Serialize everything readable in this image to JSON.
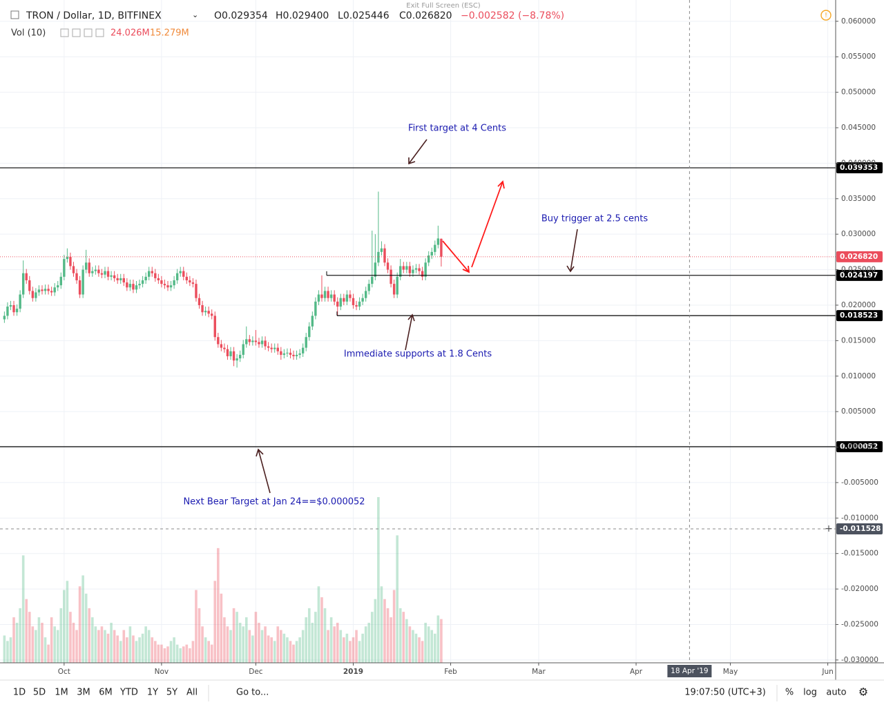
{
  "chart_data": {
    "type": "candlestick",
    "symbol": "TRON / Dollar, 1D, BITFINEX",
    "header": [
      {
        "prefix": "O",
        "value": "0.029354"
      },
      {
        "prefix": "H",
        "value": "0.029400"
      },
      {
        "prefix": "L",
        "value": "0.025446"
      },
      {
        "prefix": "C",
        "value": "0.026820"
      },
      {
        "prefix": "",
        "value": "−0.002582 (−8.78%)"
      }
    ],
    "volume_title": "Vol (10)",
    "volume_value": "24.026M",
    "volume_ma": "15.279M",
    "exit_text": "Exit Full Screen (ESC)",
    "ylim": [
      -0.0304,
      0.063
    ],
    "yticks": [
      {
        "value": 0.06,
        "label": "0.060000"
      },
      {
        "value": 0.055,
        "label": "0.055000"
      },
      {
        "value": 0.05,
        "label": "0.050000"
      },
      {
        "value": 0.045,
        "label": "0.045000"
      },
      {
        "value": 0.04,
        "label": "0.040000"
      },
      {
        "value": 0.035,
        "label": "0.035000"
      },
      {
        "value": 0.03,
        "label": "0.030000"
      },
      {
        "value": 0.025,
        "label": "0.025000"
      },
      {
        "value": 0.02,
        "label": "0.020000"
      },
      {
        "value": 0.015,
        "label": "0.015000"
      },
      {
        "value": 0.01,
        "label": "0.010000"
      },
      {
        "value": 0.005,
        "label": "0.005000"
      },
      {
        "value": 0,
        "label": "0.000000"
      },
      {
        "value": -0.005,
        "label": "-0.005000"
      },
      {
        "value": -0.01,
        "label": "-0.010000"
      },
      {
        "value": -0.015,
        "label": "-0.015000"
      },
      {
        "value": -0.02,
        "label": "-0.020000"
      },
      {
        "value": -0.025,
        "label": "-0.025000"
      },
      {
        "value": -0.03,
        "label": "-0.030000"
      }
    ],
    "xlim": [
      -1.4,
      264.5
    ],
    "xticks": [
      {
        "value": 19,
        "label": "Oct"
      },
      {
        "value": 50,
        "label": "Nov"
      },
      {
        "value": 80,
        "label": "Dec"
      },
      {
        "value": 111,
        "label": "2019"
      },
      {
        "value": 142,
        "label": "Feb"
      },
      {
        "value": 170,
        "label": "Mar"
      },
      {
        "value": 201,
        "label": "Apr"
      },
      {
        "value": 231,
        "label": "May"
      },
      {
        "value": 262,
        "label": "Jun"
      }
    ],
    "up_color": "#53b987",
    "down_color": "#eb4d5c",
    "ohlc": [
      [
        0.018,
        0.0191,
        0.0175,
        0.0185
      ],
      [
        0.0185,
        0.0204,
        0.018,
        0.0198
      ],
      [
        0.0198,
        0.0206,
        0.0193,
        0.02
      ],
      [
        0.02,
        0.0206,
        0.0185,
        0.019
      ],
      [
        0.019,
        0.0201,
        0.0185,
        0.0195
      ],
      [
        0.0195,
        0.0221,
        0.019,
        0.0215
      ],
      [
        0.0215,
        0.0263,
        0.021,
        0.0245
      ],
      [
        0.0245,
        0.0251,
        0.023,
        0.0235
      ],
      [
        0.0235,
        0.0241,
        0.0215,
        0.022
      ],
      [
        0.022,
        0.0226,
        0.0205,
        0.021
      ],
      [
        0.021,
        0.0224,
        0.0205,
        0.0218
      ],
      [
        0.0218,
        0.0228,
        0.0213,
        0.0222
      ],
      [
        0.0222,
        0.0228,
        0.0215,
        0.022
      ],
      [
        0.022,
        0.0229,
        0.0215,
        0.0223
      ],
      [
        0.0223,
        0.0229,
        0.0215,
        0.022
      ],
      [
        0.022,
        0.0226,
        0.0213,
        0.0218
      ],
      [
        0.0218,
        0.0231,
        0.0213,
        0.0225
      ],
      [
        0.0225,
        0.0234,
        0.022,
        0.0228
      ],
      [
        0.0228,
        0.0246,
        0.0223,
        0.024
      ],
      [
        0.024,
        0.0271,
        0.0235,
        0.0265
      ],
      [
        0.0265,
        0.028,
        0.026,
        0.0268
      ],
      [
        0.0268,
        0.0274,
        0.025,
        0.0255
      ],
      [
        0.0255,
        0.0261,
        0.024,
        0.0245
      ],
      [
        0.0245,
        0.0251,
        0.023,
        0.0235
      ],
      [
        0.0235,
        0.0241,
        0.021,
        0.0215
      ],
      [
        0.0215,
        0.0256,
        0.021,
        0.025
      ],
      [
        0.025,
        0.0278,
        0.0245,
        0.026
      ],
      [
        0.026,
        0.0266,
        0.024,
        0.0245
      ],
      [
        0.0245,
        0.0254,
        0.024,
        0.0248
      ],
      [
        0.0248,
        0.0256,
        0.0243,
        0.025
      ],
      [
        0.025,
        0.0256,
        0.024,
        0.0245
      ],
      [
        0.0245,
        0.0251,
        0.0238,
        0.0243
      ],
      [
        0.0243,
        0.0254,
        0.0238,
        0.0248
      ],
      [
        0.0248,
        0.0254,
        0.0235,
        0.024
      ],
      [
        0.024,
        0.0248,
        0.0235,
        0.0242
      ],
      [
        0.0242,
        0.0248,
        0.0233,
        0.0238
      ],
      [
        0.0238,
        0.0244,
        0.023,
        0.0235
      ],
      [
        0.0235,
        0.0244,
        0.023,
        0.0238
      ],
      [
        0.0238,
        0.0244,
        0.0227,
        0.0232
      ],
      [
        0.0232,
        0.0238,
        0.022,
        0.0225
      ],
      [
        0.0225,
        0.0236,
        0.022,
        0.023
      ],
      [
        0.023,
        0.0236,
        0.0217,
        0.0222
      ],
      [
        0.0222,
        0.0234,
        0.0217,
        0.0228
      ],
      [
        0.0228,
        0.0236,
        0.0223,
        0.023
      ],
      [
        0.023,
        0.0241,
        0.0225,
        0.0235
      ],
      [
        0.0235,
        0.0246,
        0.023,
        0.024
      ],
      [
        0.024,
        0.0254,
        0.0235,
        0.0248
      ],
      [
        0.0248,
        0.0254,
        0.024,
        0.0245
      ],
      [
        0.0245,
        0.0251,
        0.0233,
        0.0238
      ],
      [
        0.0238,
        0.0244,
        0.023,
        0.0235
      ],
      [
        0.0235,
        0.0241,
        0.0225,
        0.023
      ],
      [
        0.023,
        0.0236,
        0.0223,
        0.0228
      ],
      [
        0.0228,
        0.0234,
        0.022,
        0.0225
      ],
      [
        0.0225,
        0.0234,
        0.022,
        0.0228
      ],
      [
        0.0228,
        0.0241,
        0.0223,
        0.0235
      ],
      [
        0.0235,
        0.0251,
        0.023,
        0.0245
      ],
      [
        0.0245,
        0.0254,
        0.024,
        0.0248
      ],
      [
        0.0248,
        0.0254,
        0.0235,
        0.024
      ],
      [
        0.024,
        0.0246,
        0.023,
        0.0235
      ],
      [
        0.0235,
        0.0241,
        0.0227,
        0.0232
      ],
      [
        0.0232,
        0.0238,
        0.0225,
        0.023
      ],
      [
        0.023,
        0.0236,
        0.0205,
        0.021
      ],
      [
        0.021,
        0.0216,
        0.0195,
        0.02
      ],
      [
        0.02,
        0.0206,
        0.0185,
        0.019
      ],
      [
        0.019,
        0.0198,
        0.0185,
        0.0192
      ],
      [
        0.0192,
        0.0198,
        0.0183,
        0.0188
      ],
      [
        0.0188,
        0.0194,
        0.018,
        0.0185
      ],
      [
        0.0185,
        0.0191,
        0.015,
        0.0155
      ],
      [
        0.0155,
        0.0161,
        0.014,
        0.0145
      ],
      [
        0.0145,
        0.0151,
        0.0135,
        0.014
      ],
      [
        0.014,
        0.0146,
        0.0133,
        0.0138
      ],
      [
        0.0138,
        0.0144,
        0.0123,
        0.0128
      ],
      [
        0.0128,
        0.0141,
        0.0123,
        0.0135
      ],
      [
        0.0135,
        0.0141,
        0.0114,
        0.0122
      ],
      [
        0.0122,
        0.0131,
        0.0112,
        0.0125
      ],
      [
        0.0125,
        0.0136,
        0.012,
        0.013
      ],
      [
        0.013,
        0.0151,
        0.0125,
        0.0145
      ],
      [
        0.0145,
        0.017,
        0.014,
        0.0152
      ],
      [
        0.0152,
        0.0158,
        0.0143,
        0.0148
      ],
      [
        0.0148,
        0.0156,
        0.0143,
        0.015
      ],
      [
        0.015,
        0.0165,
        0.0143,
        0.0148
      ],
      [
        0.0148,
        0.0154,
        0.014,
        0.0145
      ],
      [
        0.0145,
        0.0156,
        0.014,
        0.015
      ],
      [
        0.015,
        0.0156,
        0.0137,
        0.0142
      ],
      [
        0.0142,
        0.0148,
        0.0135,
        0.014
      ],
      [
        0.014,
        0.0146,
        0.0133,
        0.0138
      ],
      [
        0.0138,
        0.0146,
        0.0133,
        0.014
      ],
      [
        0.014,
        0.0146,
        0.013,
        0.0135
      ],
      [
        0.0135,
        0.0141,
        0.0123,
        0.013
      ],
      [
        0.013,
        0.0138,
        0.0125,
        0.0132
      ],
      [
        0.0132,
        0.0139,
        0.0127,
        0.0133
      ],
      [
        0.0133,
        0.0139,
        0.0125,
        0.013
      ],
      [
        0.013,
        0.0136,
        0.0123,
        0.0128
      ],
      [
        0.0128,
        0.0136,
        0.0123,
        0.013
      ],
      [
        0.013,
        0.0138,
        0.0125,
        0.0132
      ],
      [
        0.0132,
        0.0146,
        0.0127,
        0.014
      ],
      [
        0.014,
        0.0161,
        0.0135,
        0.0155
      ],
      [
        0.0155,
        0.0176,
        0.015,
        0.017
      ],
      [
        0.017,
        0.0191,
        0.0165,
        0.0185
      ],
      [
        0.0185,
        0.0211,
        0.018,
        0.0205
      ],
      [
        0.0205,
        0.0221,
        0.02,
        0.0215
      ],
      [
        0.0215,
        0.0242,
        0.0205,
        0.021
      ],
      [
        0.021,
        0.0226,
        0.0205,
        0.022
      ],
      [
        0.022,
        0.0226,
        0.0205,
        0.021
      ],
      [
        0.021,
        0.0221,
        0.0205,
        0.0215
      ],
      [
        0.0215,
        0.0221,
        0.02,
        0.0205
      ],
      [
        0.0205,
        0.0211,
        0.0185,
        0.0198
      ],
      [
        0.0198,
        0.0216,
        0.0193,
        0.021
      ],
      [
        0.021,
        0.0216,
        0.02,
        0.0205
      ],
      [
        0.0205,
        0.0221,
        0.02,
        0.0215
      ],
      [
        0.0215,
        0.0221,
        0.0205,
        0.021
      ],
      [
        0.021,
        0.0216,
        0.0195,
        0.02
      ],
      [
        0.02,
        0.0206,
        0.0193,
        0.0198
      ],
      [
        0.0198,
        0.0211,
        0.0193,
        0.0205
      ],
      [
        0.0205,
        0.0216,
        0.02,
        0.021
      ],
      [
        0.021,
        0.0226,
        0.0205,
        0.022
      ],
      [
        0.022,
        0.0236,
        0.0215,
        0.023
      ],
      [
        0.023,
        0.0305,
        0.0225,
        0.024
      ],
      [
        0.024,
        0.03,
        0.0235,
        0.026
      ],
      [
        0.026,
        0.036,
        0.0255,
        0.0275
      ],
      [
        0.0275,
        0.029,
        0.027,
        0.028
      ],
      [
        0.028,
        0.0286,
        0.0255,
        0.026
      ],
      [
        0.026,
        0.0266,
        0.0245,
        0.025
      ],
      [
        0.025,
        0.0256,
        0.0225,
        0.023
      ],
      [
        0.023,
        0.0236,
        0.021,
        0.0215
      ],
      [
        0.0215,
        0.0246,
        0.021,
        0.024
      ],
      [
        0.024,
        0.0265,
        0.0235,
        0.0255
      ],
      [
        0.0255,
        0.0261,
        0.0245,
        0.025
      ],
      [
        0.025,
        0.0261,
        0.0245,
        0.0255
      ],
      [
        0.0255,
        0.0261,
        0.024,
        0.0245
      ],
      [
        0.0245,
        0.0256,
        0.024,
        0.025
      ],
      [
        0.025,
        0.0258,
        0.0245,
        0.0252
      ],
      [
        0.0252,
        0.0258,
        0.0243,
        0.0248
      ],
      [
        0.0248,
        0.0254,
        0.0235,
        0.024
      ],
      [
        0.024,
        0.0266,
        0.0235,
        0.026
      ],
      [
        0.026,
        0.0276,
        0.0255,
        0.027
      ],
      [
        0.027,
        0.0281,
        0.0265,
        0.0275
      ],
      [
        0.0275,
        0.0291,
        0.027,
        0.0285
      ],
      [
        0.0285,
        0.0312,
        0.028,
        0.0294
      ],
      [
        0.029354,
        0.0294,
        0.025446,
        0.02682
      ]
    ],
    "volume": [
      15,
      12,
      14,
      25,
      22,
      30,
      59,
      35,
      28,
      20,
      18,
      25,
      22,
      14,
      10,
      25,
      20,
      18,
      30,
      40,
      45,
      28,
      22,
      18,
      42,
      48,
      38,
      30,
      25,
      20,
      18,
      20,
      18,
      16,
      22,
      18,
      15,
      12,
      18,
      14,
      20,
      15,
      12,
      14,
      16,
      20,
      18,
      14,
      12,
      10,
      10,
      8,
      9,
      12,
      14,
      10,
      8,
      9,
      10,
      8,
      12,
      40,
      30,
      20,
      14,
      12,
      10,
      45,
      63,
      38,
      25,
      20,
      18,
      30,
      28,
      22,
      20,
      25,
      18,
      15,
      28,
      22,
      18,
      20,
      15,
      14,
      12,
      20,
      18,
      16,
      14,
      12,
      10,
      12,
      14,
      18,
      25,
      30,
      22,
      28,
      42,
      36,
      30,
      18,
      25,
      20,
      22,
      18,
      14,
      16,
      12,
      14,
      18,
      12,
      16,
      20,
      22,
      28,
      35,
      91,
      42,
      35,
      30,
      25,
      40,
      70,
      30,
      28,
      24,
      20,
      18,
      16,
      14,
      12,
      22,
      20,
      18,
      16,
      26,
      24.026
    ],
    "last_price": {
      "value": 0.02682,
      "label": "0.026820"
    },
    "levels": [
      {
        "value": 0.039353,
        "label": "0.039353"
      },
      {
        "value": 0.024197,
        "label": "0.024197"
      },
      {
        "value": 0.018523,
        "label": "0.018523"
      },
      {
        "value": 5.2e-05,
        "label": "0.000052"
      }
    ],
    "crosshair": {
      "price": {
        "value": -0.011528,
        "label": "-0.011528"
      },
      "date": {
        "value": 218,
        "label": "18 Apr '19"
      }
    },
    "annotations": [
      "First target at 4 Cents",
      "Buy trigger at 2.5 cents",
      "Immediate supports at 1.8 Cents",
      "Next Bear Target at Jan 24==$0.000052"
    ],
    "toolbar": {
      "ranges": [
        "1D",
        "5D",
        "1M",
        "3M",
        "6M",
        "YTD",
        "1Y",
        "5Y",
        "All"
      ],
      "goto": "Go to...",
      "time": "19:07:50 (UTC+3)",
      "percent": "%",
      "log": "log",
      "auto": "auto"
    }
  }
}
